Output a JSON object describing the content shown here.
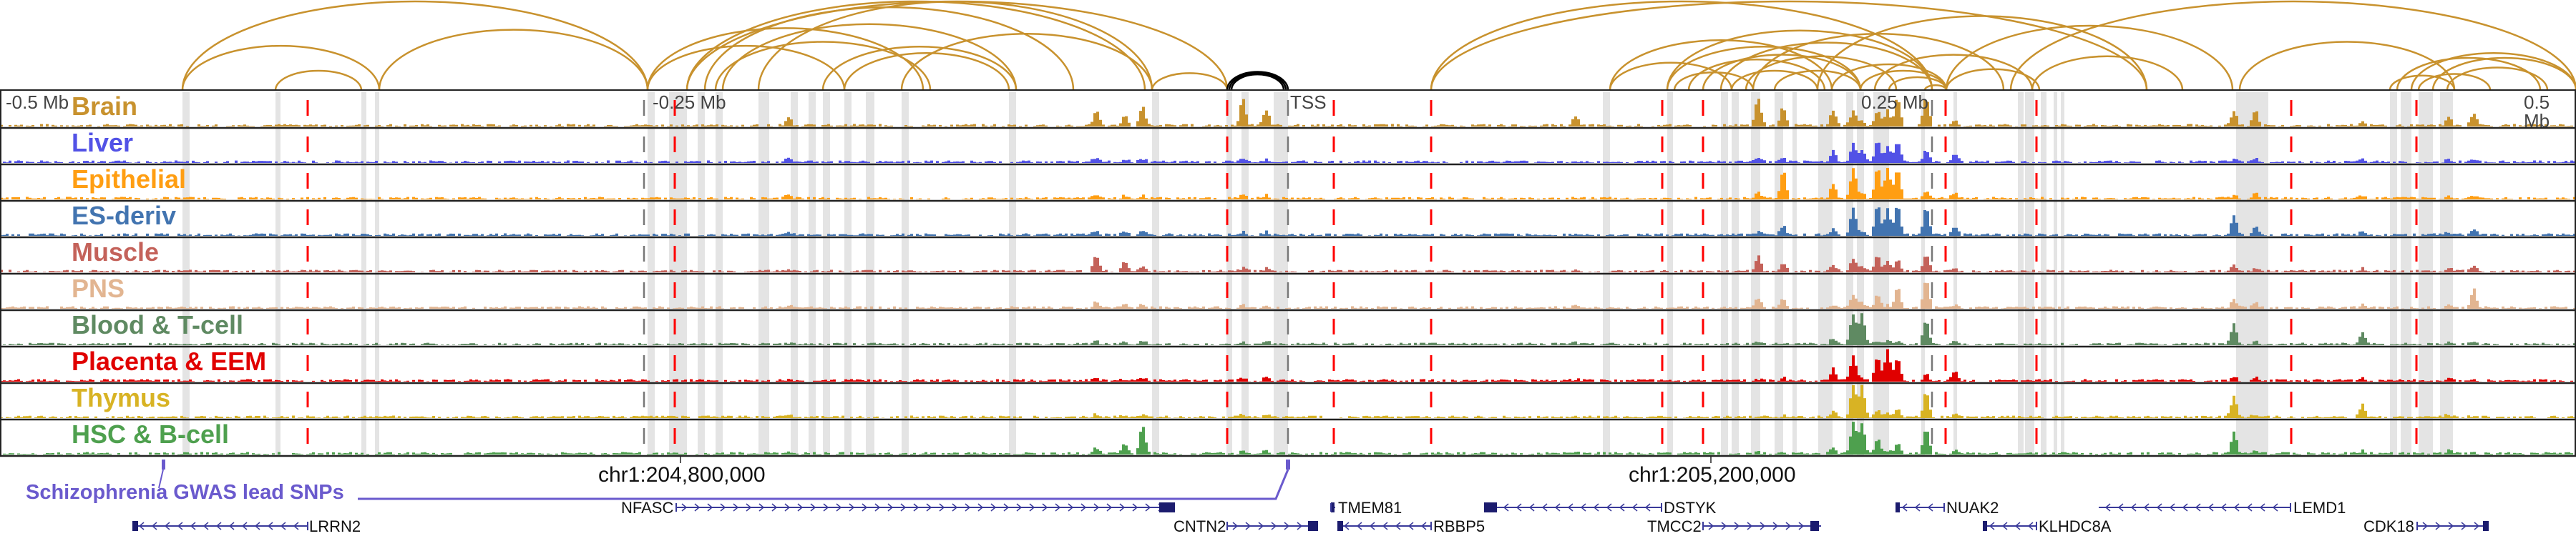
{
  "axis": {
    "minus_half": "-0.5 Mb",
    "minus_quarter": "-0.25 Mb",
    "tss": "TSS",
    "plus_quarter": "0.25 Mb",
    "plus_half": "0.5 Mb"
  },
  "tracks": [
    {
      "label": "Brain",
      "color": "#c8922e"
    },
    {
      "label": "Liver",
      "color": "#5252e6"
    },
    {
      "label": "Epithelial",
      "color": "#ff9e12"
    },
    {
      "label": "ES-deriv",
      "color": "#4274b0"
    },
    {
      "label": "Muscle",
      "color": "#c4625a"
    },
    {
      "label": "PNS",
      "color": "#e2b591"
    },
    {
      "label": "Blood & T-cell",
      "color": "#5f8a62"
    },
    {
      "label": "Placenta & EEM",
      "color": "#e00000"
    },
    {
      "label": "Thymus",
      "color": "#d8b324"
    },
    {
      "label": "HSC & B-cell",
      "color": "#4ea04e"
    }
  ],
  "gwas": {
    "label": "Schizophrenia GWAS lead SNPs",
    "color": "#6a5acd"
  },
  "coordinates": [
    "chr1:204,800,000",
    "chr1:205,200,000"
  ],
  "genes": [
    {
      "name": "LRRN2",
      "strand": "-"
    },
    {
      "name": "NFASC",
      "strand": "+"
    },
    {
      "name": "CNTN2",
      "strand": "+"
    },
    {
      "name": "TMEM81",
      "strand": "+"
    },
    {
      "name": "RBBP5",
      "strand": "-"
    },
    {
      "name": "DSTYK",
      "strand": "-"
    },
    {
      "name": "TMCC2",
      "strand": "+"
    },
    {
      "name": "NUAK2",
      "strand": "-"
    },
    {
      "name": "KLHDC8A",
      "strand": "-"
    },
    {
      "name": "LEMD1",
      "strand": "-"
    },
    {
      "name": "CDK18",
      "strand": "+"
    }
  ],
  "colors": {
    "arc": "#c8922e",
    "arc_highlight": "#000000",
    "boundary": "#ff0000",
    "highlight": "#e4e4e4",
    "gene": "#1c1c6e"
  }
}
